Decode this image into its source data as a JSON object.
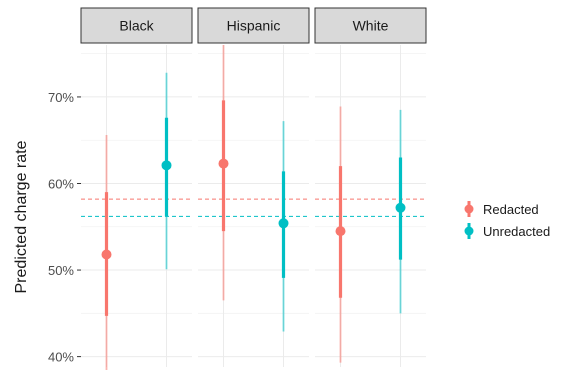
{
  "chart_data": {
    "type": "pointrange",
    "ylabel": "Predicted charge rate",
    "ylim": [
      0.388,
      0.76
    ],
    "yticks": [
      0.4,
      0.5,
      0.6,
      0.7
    ],
    "ytick_labels": [
      "40%",
      "50%",
      "60%",
      "70%"
    ],
    "panels": [
      "Black",
      "Hispanic",
      "White"
    ],
    "legend_position": "right",
    "series": [
      {
        "name": "Redacted",
        "color": "#F8766D",
        "reference_line": 0.582,
        "points": [
          {
            "panel": "Black",
            "estimate": 0.518,
            "inner": [
              0.447,
              0.59
            ],
            "outer": [
              0.383,
              0.656
            ]
          },
          {
            "panel": "Hispanic",
            "estimate": 0.623,
            "inner": [
              0.545,
              0.696
            ],
            "outer": [
              0.465,
              0.76
            ]
          },
          {
            "panel": "White",
            "estimate": 0.545,
            "inner": [
              0.468,
              0.62
            ],
            "outer": [
              0.393,
              0.689
            ]
          }
        ]
      },
      {
        "name": "Unredacted",
        "color": "#00BFC4",
        "reference_line": 0.562,
        "points": [
          {
            "panel": "Black",
            "estimate": 0.621,
            "inner": [
              0.562,
              0.676
            ],
            "outer": [
              0.501,
              0.728
            ]
          },
          {
            "panel": "Hispanic",
            "estimate": 0.554,
            "inner": [
              0.491,
              0.614
            ],
            "outer": [
              0.429,
              0.672
            ]
          },
          {
            "panel": "White",
            "estimate": 0.572,
            "inner": [
              0.512,
              0.63
            ],
            "outer": [
              0.45,
              0.685
            ]
          }
        ]
      }
    ]
  }
}
